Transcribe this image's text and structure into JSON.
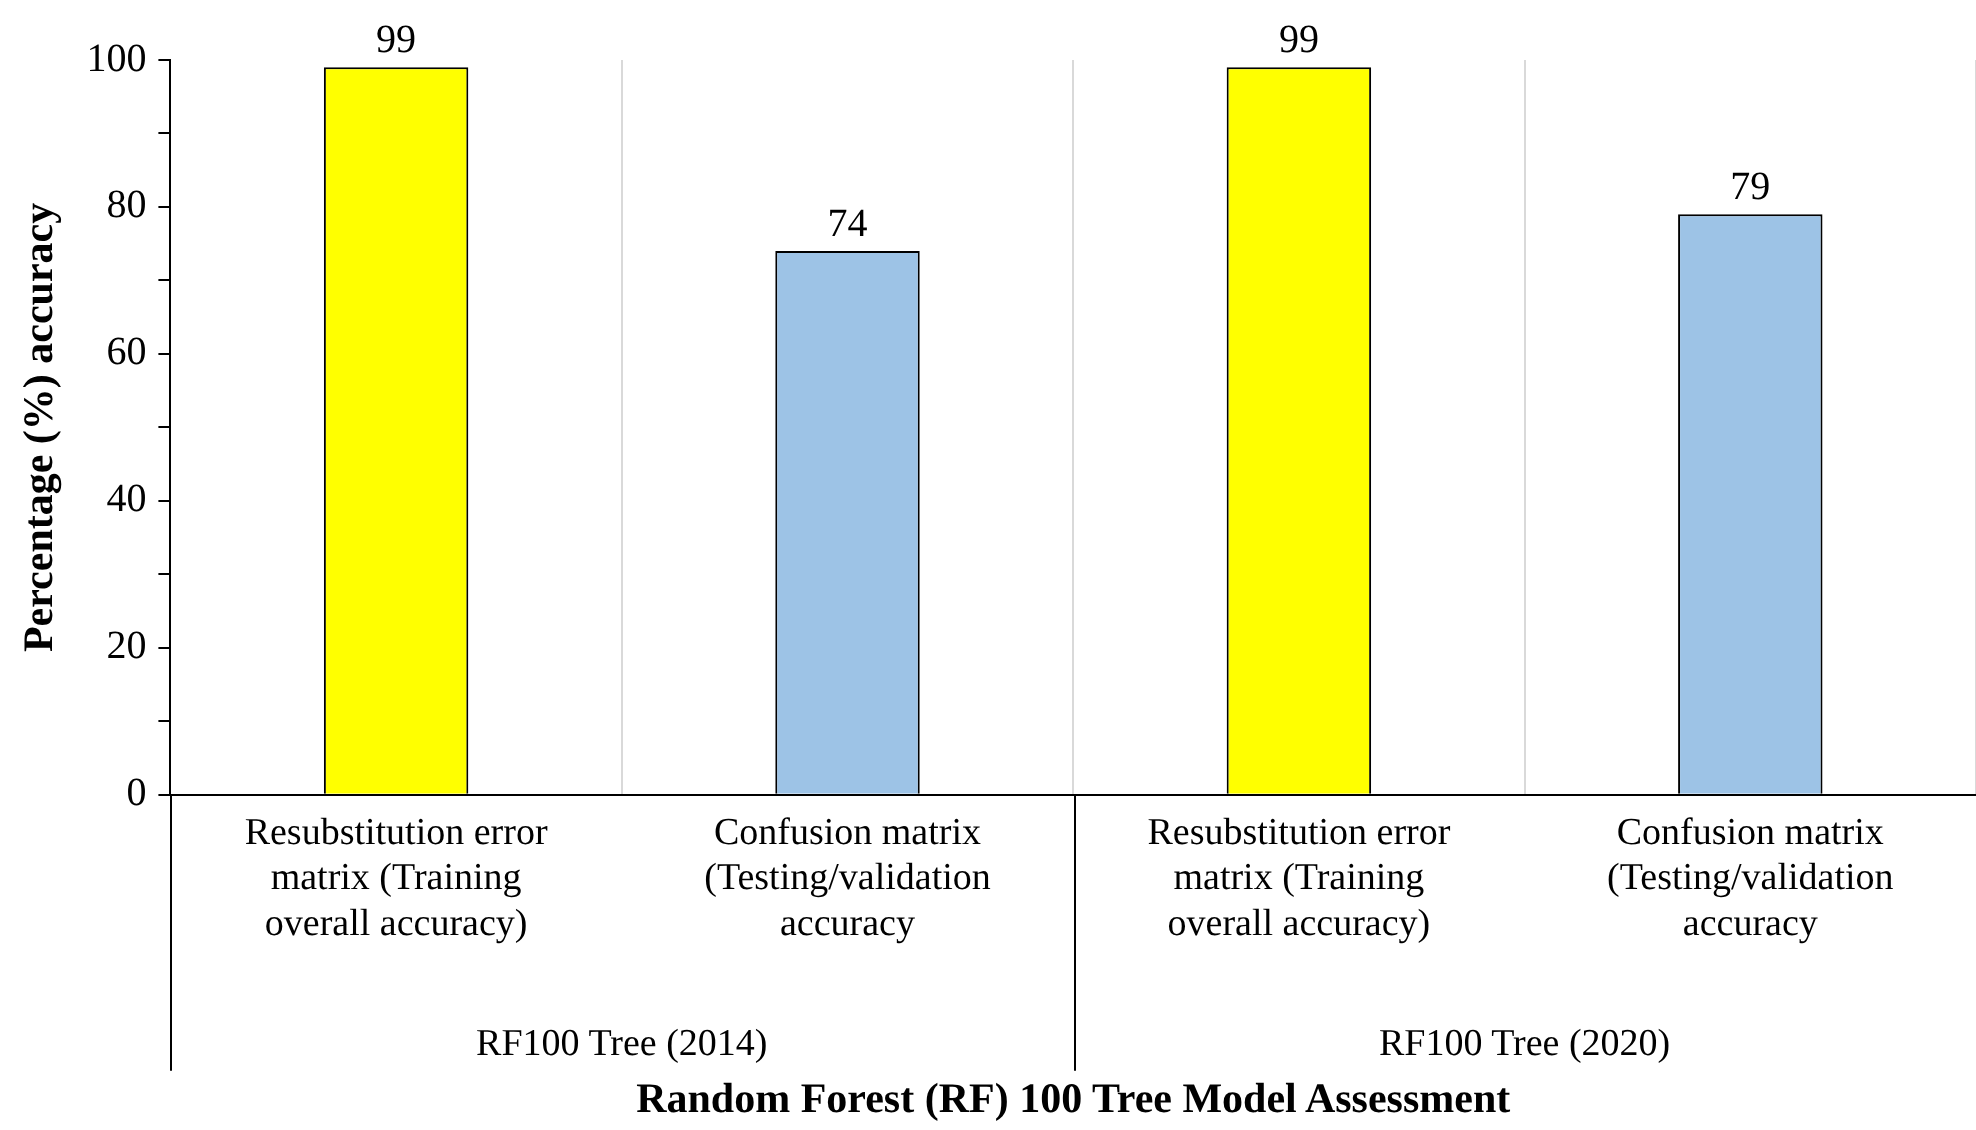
{
  "chart_data": {
    "type": "bar",
    "xlabel": "Random Forest (RF) 100 Tree Model Assessment",
    "ylabel": "Percentage (%) accuracy",
    "categories": [
      "Resubstitution error matrix (Training overall accuracy)",
      "Confusion matrix (Testing/validation accuracy",
      "Resubstitution error matrix (Training overall accuracy)",
      "Confusion matrix (Testing/validation accuracy"
    ],
    "values": [
      99,
      74,
      99,
      79
    ],
    "colors": [
      "#ffff00",
      "#9dc3e6",
      "#ffff00",
      "#9dc3e6"
    ],
    "ylim": [
      0,
      100
    ],
    "yticks": [
      0,
      {
        "value": 10,
        "label": null
      },
      20,
      {
        "value": 30,
        "label": null
      },
      40,
      {
        "value": 50,
        "label": null
      },
      60,
      {
        "value": 70,
        "label": null
      },
      80,
      {
        "value": 90,
        "label": null
      },
      100
    ],
    "grid": "x",
    "data_labels": true,
    "annotations": [
      "RF100 Tree (2014)",
      "RF100 Tree (2020)"
    ]
  }
}
